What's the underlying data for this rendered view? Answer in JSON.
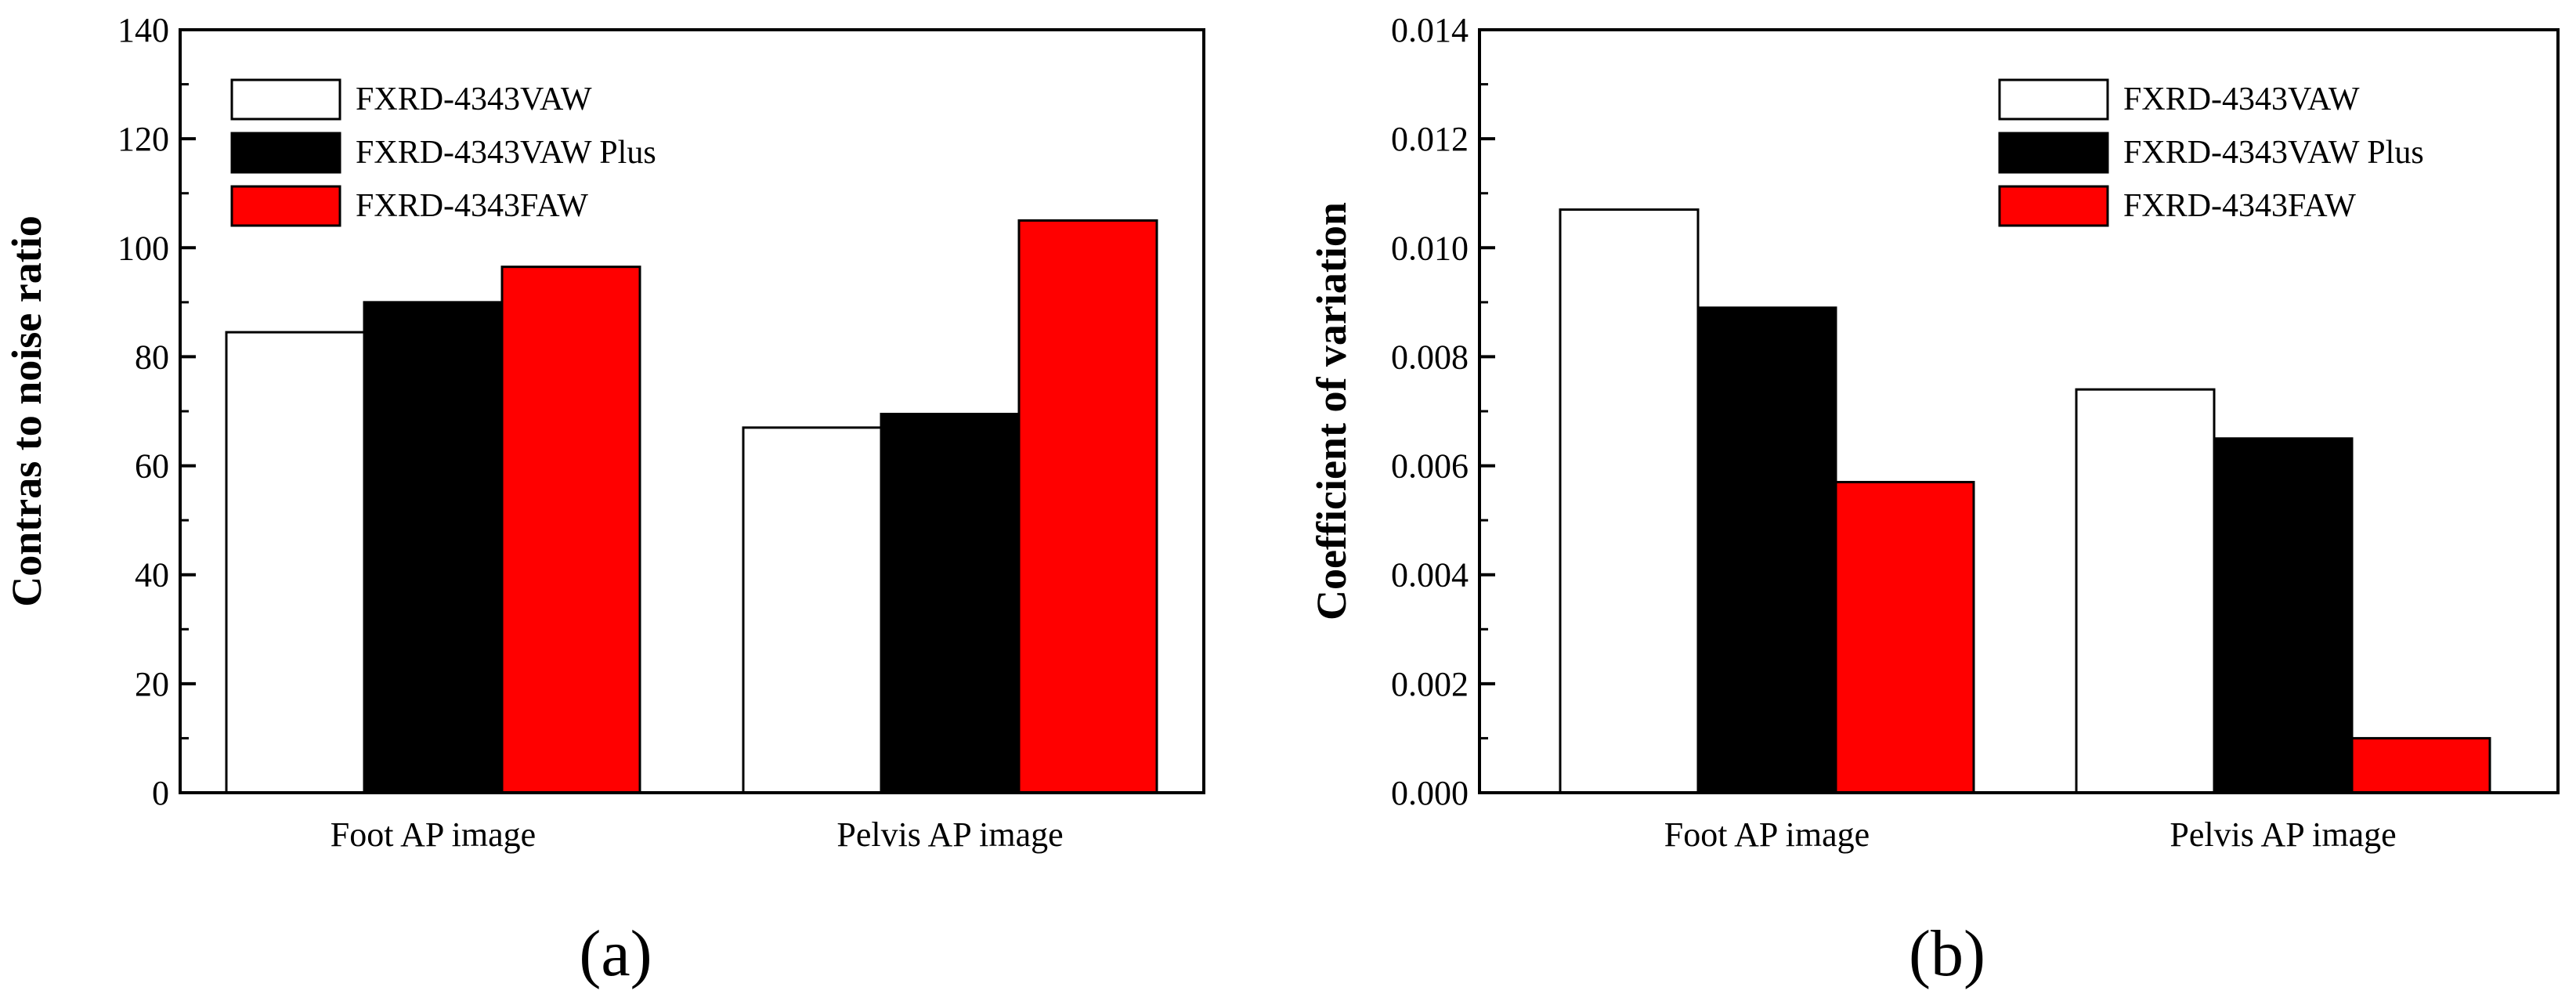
{
  "chart_data": [
    {
      "type": "bar",
      "panel_label": "(a)",
      "title": "",
      "xlabel": "",
      "ylabel": "Contras to noise ratio",
      "ylim": [
        0,
        140
      ],
      "yticks": [
        0,
        20,
        40,
        60,
        80,
        100,
        120,
        140
      ],
      "yticks_text": [
        "0",
        "20",
        "40",
        "60",
        "80",
        "100",
        "120",
        "140"
      ],
      "categories": [
        "Foot AP image",
        "Pelvis AP image"
      ],
      "series": [
        {
          "name": "FXRD-4343VAW",
          "color": "#ffffff",
          "values": [
            84.5,
            67
          ]
        },
        {
          "name": "FXRD-4343VAW Plus",
          "color": "#000000",
          "values": [
            90,
            69.5
          ]
        },
        {
          "name": "FXRD-4343FAW",
          "color": "#ff0000",
          "values": [
            96.5,
            105
          ]
        }
      ],
      "legend_position": "top-left"
    },
    {
      "type": "bar",
      "panel_label": "(b)",
      "title": "",
      "xlabel": "",
      "ylabel": "Coefficient of variation",
      "ylim": [
        0,
        0.014
      ],
      "yticks": [
        0,
        0.002,
        0.004,
        0.006,
        0.008,
        0.01,
        0.012,
        0.014
      ],
      "yticks_text": [
        "0.000",
        "0.002",
        "0.004",
        "0.006",
        "0.008",
        "0.010",
        "0.012",
        "0.014"
      ],
      "categories": [
        "Foot AP image",
        "Pelvis AP image"
      ],
      "series": [
        {
          "name": "FXRD-4343VAW",
          "color": "#ffffff",
          "values": [
            0.0107,
            0.0074
          ]
        },
        {
          "name": "FXRD-4343VAW Plus",
          "color": "#000000",
          "values": [
            0.0089,
            0.0065
          ]
        },
        {
          "name": "FXRD-4343FAW",
          "color": "#ff0000",
          "values": [
            0.0057,
            0.001
          ]
        }
      ],
      "legend_position": "top-right"
    }
  ]
}
